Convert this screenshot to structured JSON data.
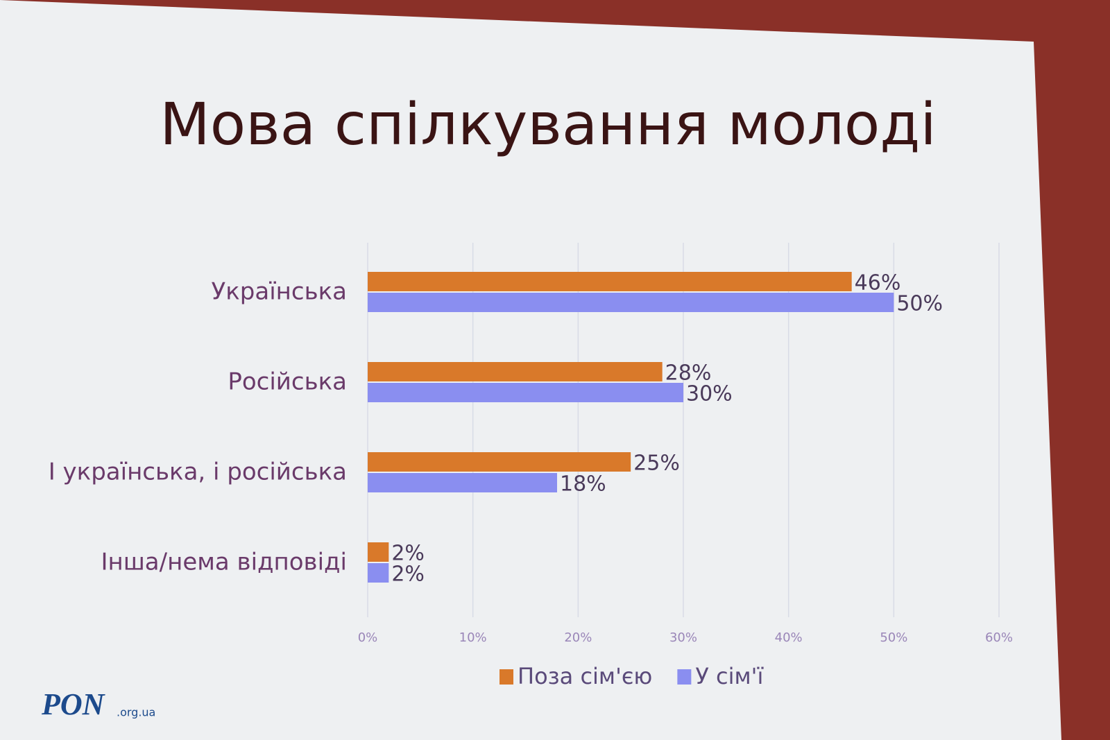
{
  "chart_data": {
    "type": "hbar",
    "title": "Мова спілкування молоді",
    "categories": [
      "Українська",
      "Російська",
      "І українська, і російська",
      "Інша/нема відповіді"
    ],
    "series": [
      {
        "name": "Поза сім'єю",
        "color": "#d9792a",
        "values": [
          46,
          28,
          25,
          2
        ],
        "value_labels": [
          "46%",
          "28%",
          "25%",
          "2%"
        ]
      },
      {
        "name": "У сім'ї",
        "color": "#8a8ef0",
        "values": [
          50,
          30,
          18,
          2
        ],
        "value_labels": [
          "50%",
          "30%",
          "18%",
          "2%"
        ]
      }
    ],
    "xlim": [
      0,
      60
    ],
    "xticks": [
      {
        "value": 0,
        "label": "0%"
      },
      {
        "value": 10,
        "label": "10%"
      },
      {
        "value": 20,
        "label": "20%"
      },
      {
        "value": 30,
        "label": "30%"
      },
      {
        "value": 40,
        "label": "40%"
      },
      {
        "value": 50,
        "label": "50%"
      },
      {
        "value": 60,
        "label": "60%"
      }
    ],
    "grid": true,
    "legend": "bottom"
  },
  "watermark": {
    "brand": "PON",
    "domain": ".org.ua"
  }
}
